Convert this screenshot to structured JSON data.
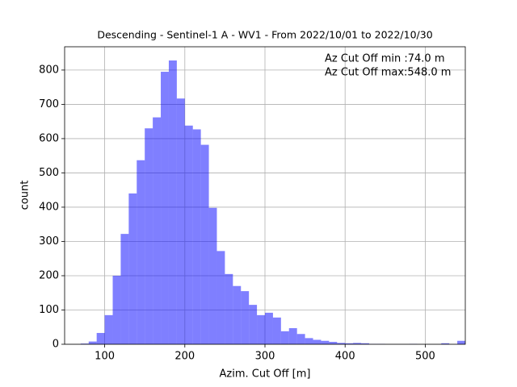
{
  "chart_data": {
    "type": "histogram",
    "title": "Descending - Sentinel-1 A - WV1 - From 2022/10/01 to 2022/10/30",
    "x_label": "Azim. Cut Off [m]",
    "y_label": "count",
    "annotations": [
      "Az Cut Off min :74.0 m",
      "Az Cut Off max:548.0 m"
    ],
    "bins": [
      70,
      80,
      90,
      100,
      110,
      120,
      130,
      140,
      150,
      160,
      170,
      180,
      190,
      200,
      210,
      220,
      230,
      240,
      250,
      260,
      270,
      280,
      290,
      300,
      310,
      320,
      330,
      340,
      350,
      360,
      370,
      380,
      390,
      400,
      410,
      420,
      430,
      440,
      450,
      460,
      470,
      480,
      490,
      500,
      510,
      520,
      530,
      540,
      550
    ],
    "values": [
      2,
      8,
      33,
      85,
      200,
      322,
      440,
      537,
      630,
      662,
      795,
      828,
      717,
      638,
      627,
      582,
      398,
      272,
      205,
      170,
      155,
      115,
      85,
      92,
      78,
      38,
      47,
      30,
      18,
      13,
      10,
      7,
      4,
      3,
      4,
      3,
      1,
      1,
      0,
      0,
      0,
      1,
      0,
      0,
      0,
      3,
      0,
      10
    ],
    "color": "blue",
    "alpha": 0.5,
    "xlim": [
      50,
      550
    ],
    "ylim": [
      0,
      868
    ],
    "xticks": [
      100,
      200,
      300,
      400,
      500
    ],
    "yticks": [
      0,
      100,
      200,
      300,
      400,
      500,
      600,
      700,
      800
    ],
    "grid": true
  }
}
